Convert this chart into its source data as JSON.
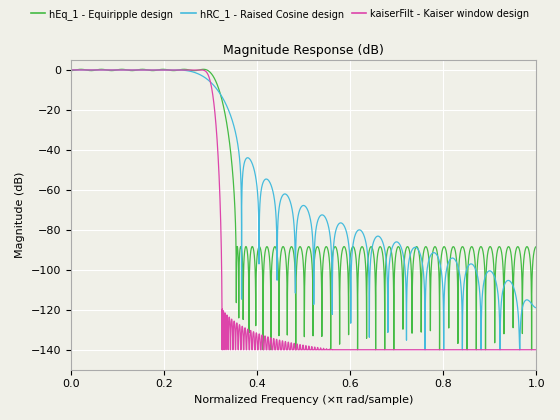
{
  "title": "Magnitude Response (dB)",
  "xlabel": "Normalized Frequency (×π rad/sample)",
  "ylabel": "Magnitude (dB)",
  "xlim": [
    0,
    1
  ],
  "ylim": [
    -150,
    5
  ],
  "yticks": [
    0,
    -20,
    -40,
    -60,
    -80,
    -100,
    -120,
    -140
  ],
  "xticks": [
    0,
    0.2,
    0.4,
    0.6,
    0.8,
    1.0
  ],
  "background_color": "#f0f0e8",
  "grid_color": "#ffffff",
  "legend": [
    {
      "label": "hEq_1 - Equiripple design",
      "color": "#44bb44"
    },
    {
      "label": "hRC_1 - Raised Cosine design",
      "color": "#44bbdd"
    },
    {
      "label": "kaiserFilt - Kaiser window design",
      "color": "#dd44aa"
    }
  ],
  "eq_color": "#44bb44",
  "rc_color": "#44bbdd",
  "kaiser_color": "#dd44aa",
  "lw": 0.9
}
